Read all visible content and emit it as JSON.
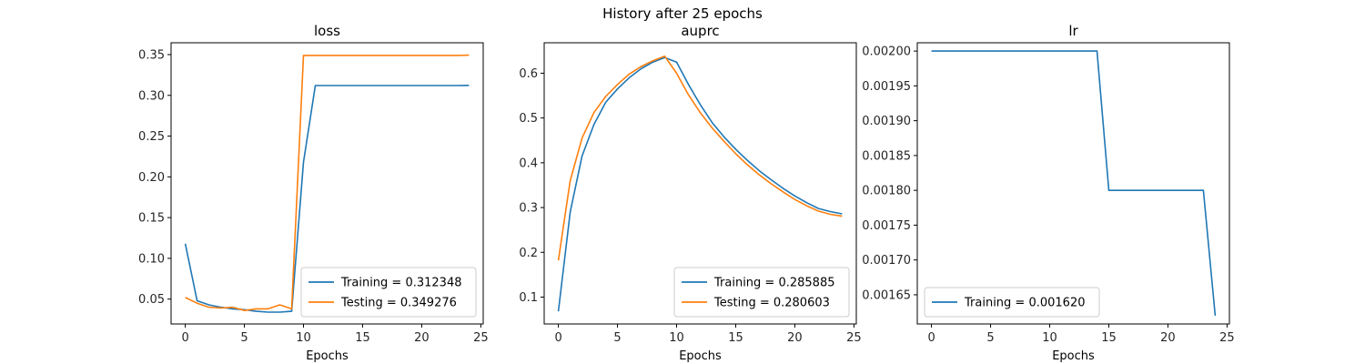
{
  "figure": {
    "suptitle": "History after 25 epochs"
  },
  "colors": {
    "training": "#1f77b4",
    "testing": "#ff7f0e"
  },
  "chart_data": [
    {
      "type": "line",
      "title": "loss",
      "xlabel": "Epochs",
      "ylabel": "",
      "xlim": [
        -1.2,
        25.2
      ],
      "ylim": [
        0.0195,
        0.3645
      ],
      "xticks": [
        0,
        5,
        10,
        15,
        20,
        25
      ],
      "yticks": [
        0.05,
        0.1,
        0.15,
        0.2,
        0.25,
        0.3,
        0.35
      ],
      "ytick_labels": [
        "0.05",
        "0.10",
        "0.15",
        "0.20",
        "0.25",
        "0.30",
        "0.35"
      ],
      "legend_position": "lower-right",
      "series": [
        {
          "name": "Training = 0.312348",
          "color": "#1f77b4",
          "x": [
            0,
            1,
            2,
            3,
            4,
            5,
            6,
            7,
            8,
            9,
            10,
            11,
            12,
            13,
            14,
            15,
            16,
            17,
            18,
            19,
            20,
            21,
            22,
            23,
            24
          ],
          "y": [
            0.118,
            0.048,
            0.043,
            0.04,
            0.038,
            0.037,
            0.035,
            0.034,
            0.034,
            0.035,
            0.218,
            0.312,
            0.312,
            0.312,
            0.312,
            0.312,
            0.312,
            0.312,
            0.312,
            0.312,
            0.312,
            0.312,
            0.312,
            0.312,
            0.3123
          ]
        },
        {
          "name": "Testing = 0.349276",
          "color": "#ff7f0e",
          "x": [
            0,
            1,
            2,
            3,
            4,
            5,
            6,
            7,
            8,
            9,
            10,
            11,
            12,
            13,
            14,
            15,
            16,
            17,
            18,
            19,
            20,
            21,
            22,
            23,
            24
          ],
          "y": [
            0.052,
            0.045,
            0.04,
            0.039,
            0.04,
            0.036,
            0.038,
            0.038,
            0.043,
            0.038,
            0.349,
            0.349,
            0.349,
            0.349,
            0.349,
            0.349,
            0.349,
            0.349,
            0.349,
            0.349,
            0.349,
            0.349,
            0.349,
            0.349,
            0.3493
          ]
        }
      ]
    },
    {
      "type": "line",
      "title": "auprc",
      "xlabel": "Epochs",
      "ylabel": "",
      "xlim": [
        -1.2,
        25.2
      ],
      "ylim": [
        0.04,
        0.668
      ],
      "xticks": [
        0,
        5,
        10,
        15,
        20,
        25
      ],
      "yticks": [
        0.1,
        0.2,
        0.3,
        0.4,
        0.5,
        0.6
      ],
      "ytick_labels": [
        "0.1",
        "0.2",
        "0.3",
        "0.4",
        "0.5",
        "0.6"
      ],
      "legend_position": "lower-right",
      "series": [
        {
          "name": "Training = 0.285885",
          "color": "#1f77b4",
          "x": [
            0,
            1,
            2,
            3,
            4,
            5,
            6,
            7,
            8,
            9,
            10,
            11,
            12,
            13,
            14,
            15,
            16,
            17,
            18,
            19,
            20,
            21,
            22,
            23,
            24
          ],
          "y": [
            0.068,
            0.29,
            0.415,
            0.485,
            0.535,
            0.565,
            0.59,
            0.61,
            0.625,
            0.635,
            0.625,
            0.575,
            0.53,
            0.49,
            0.458,
            0.43,
            0.405,
            0.382,
            0.362,
            0.343,
            0.326,
            0.311,
            0.298,
            0.291,
            0.2859
          ]
        },
        {
          "name": "Testing = 0.280603",
          "color": "#ff7f0e",
          "x": [
            0,
            1,
            2,
            3,
            4,
            5,
            6,
            7,
            8,
            9,
            10,
            11,
            12,
            13,
            14,
            15,
            16,
            17,
            18,
            19,
            20,
            21,
            22,
            23,
            24
          ],
          "y": [
            0.182,
            0.36,
            0.455,
            0.512,
            0.548,
            0.575,
            0.598,
            0.615,
            0.628,
            0.638,
            0.6,
            0.552,
            0.512,
            0.478,
            0.448,
            0.42,
            0.395,
            0.373,
            0.353,
            0.335,
            0.318,
            0.304,
            0.292,
            0.285,
            0.2806
          ]
        }
      ]
    },
    {
      "type": "line",
      "title": "lr",
      "xlabel": "Epochs",
      "ylabel": "",
      "xlim": [
        -1.2,
        25.2
      ],
      "ylim": [
        0.0016081,
        0.0020119
      ],
      "xticks": [
        0,
        5,
        10,
        15,
        20,
        25
      ],
      "yticks": [
        0.00165,
        0.0017,
        0.00175,
        0.0018,
        0.00185,
        0.0019,
        0.00195,
        0.002
      ],
      "ytick_labels": [
        "0.00165",
        "0.00170",
        "0.00175",
        "0.00180",
        "0.00185",
        "0.00190",
        "0.00195",
        "0.00200"
      ],
      "legend_position": "lower-left",
      "series": [
        {
          "name": "Training = 0.001620",
          "color": "#1f77b4",
          "x": [
            0,
            1,
            2,
            3,
            4,
            5,
            6,
            7,
            8,
            9,
            10,
            11,
            12,
            13,
            14,
            15,
            16,
            17,
            18,
            19,
            20,
            21,
            22,
            23,
            24
          ],
          "y": [
            0.002,
            0.002,
            0.002,
            0.002,
            0.002,
            0.002,
            0.002,
            0.002,
            0.002,
            0.002,
            0.002,
            0.002,
            0.002,
            0.002,
            0.002,
            0.0018,
            0.0018,
            0.0018,
            0.0018,
            0.0018,
            0.0018,
            0.0018,
            0.0018,
            0.0018,
            0.00162
          ]
        }
      ]
    }
  ]
}
